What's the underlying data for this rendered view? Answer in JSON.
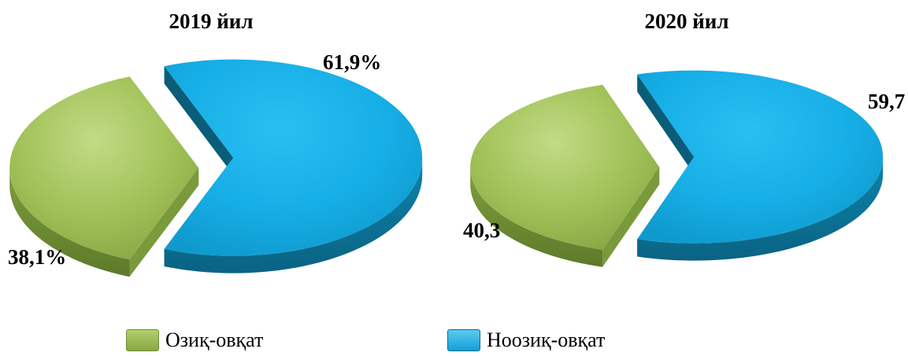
{
  "chart_data": [
    {
      "type": "pie",
      "title": "2019 йил",
      "slices": [
        {
          "label": "Озиқ-овқат",
          "value": 38.1,
          "display": "38,1%"
        },
        {
          "label": "Ноозиқ-овқат",
          "value": 61.9,
          "display": "61,9%"
        }
      ]
    },
    {
      "type": "pie",
      "title": "2020 йил",
      "slices": [
        {
          "label": "Озиқ-овқат",
          "value": 40.3,
          "display": "40,3"
        },
        {
          "label": "Ноозиқ-овқат",
          "value": 59.7,
          "display": "59,7"
        }
      ]
    }
  ],
  "legend": [
    {
      "label": "Озиқ-овқат",
      "color": "#8fb24a"
    },
    {
      "label": "Ноозиқ-овқат",
      "color": "#1aaee6"
    }
  ],
  "colors": {
    "food_top": "#a6c65c",
    "food_side": "#6f8e35",
    "nonfood_top": "#1db0e8",
    "nonfood_side": "#0c6b8c",
    "nonfood_cut": "#0a5d78",
    "food_cut": "#7a9a3c"
  }
}
